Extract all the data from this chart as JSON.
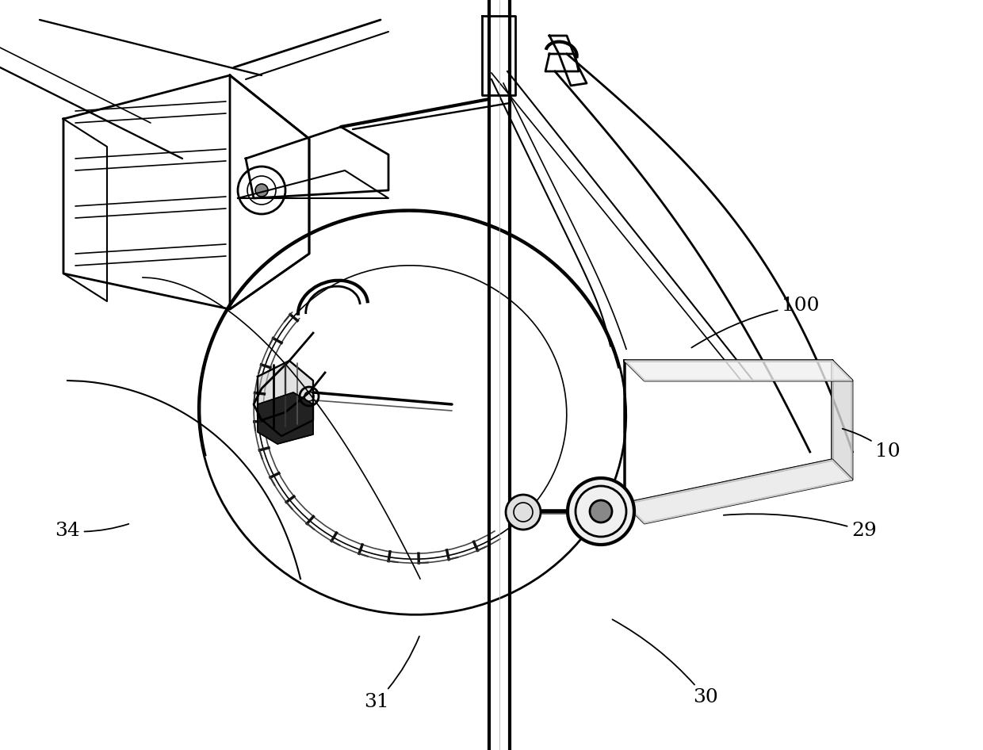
{
  "background_color": "#ffffff",
  "line_color": "#000000",
  "fig_width": 12.4,
  "fig_height": 9.46,
  "label_fontsize": 18,
  "dpi": 100
}
